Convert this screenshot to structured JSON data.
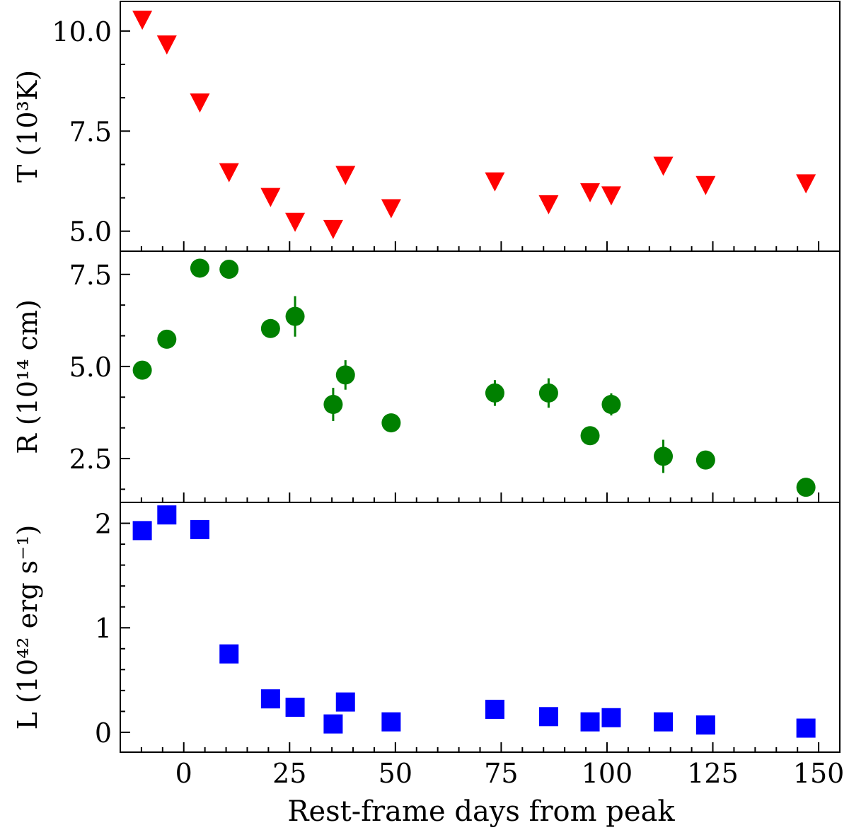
{
  "chart_data": {
    "type": "scatter",
    "xlabel": "Rest-frame days from peak",
    "xlim": [
      -15,
      155
    ],
    "xticks": [
      0,
      25,
      50,
      75,
      100,
      125,
      150
    ],
    "x": [
      -9.8,
      -4,
      3.8,
      10.7,
      20.5,
      26.3,
      35.3,
      38.2,
      49,
      73.5,
      86.2,
      96,
      101,
      113.3,
      123.3,
      147
    ],
    "panels": [
      {
        "name": "T",
        "ylabel": "T (10³K)",
        "ylim": [
          4.5,
          10.74
        ],
        "yticks": [
          "5.0",
          "7.5",
          "10.0"
        ],
        "ytick_values": [
          5,
          7.5,
          10
        ],
        "marker": "triangle-down",
        "color": "#ff0000",
        "values": [
          10.35,
          9.73,
          8.28,
          6.54,
          5.92,
          5.3,
          5.12,
          6.47,
          5.64,
          6.31,
          5.74,
          6.04,
          5.96,
          6.7,
          6.22,
          6.26
        ],
        "errors": [
          0,
          0,
          0,
          0,
          0,
          0,
          0,
          0,
          0,
          0,
          0,
          0,
          0,
          0,
          0,
          0
        ]
      },
      {
        "name": "R",
        "ylabel": "R (10¹⁴ cm)",
        "ylim": [
          1.31,
          8.13
        ],
        "yticks": [
          "2.5",
          "5.0",
          "7.5"
        ],
        "ytick_values": [
          2.5,
          5,
          7.5
        ],
        "marker": "circle",
        "color": "#008000",
        "values": [
          4.9,
          5.74,
          7.67,
          7.64,
          6.03,
          6.36,
          3.97,
          4.77,
          3.47,
          4.28,
          4.28,
          3.12,
          3.97,
          2.56,
          2.46,
          1.72
        ],
        "errors": [
          0,
          0,
          0,
          0,
          0,
          0.55,
          0.45,
          0.4,
          0,
          0.35,
          0.4,
          0,
          0.3,
          0.45,
          0,
          0
        ]
      },
      {
        "name": "L",
        "ylabel": "L (10⁴² erg s⁻¹)",
        "ylim": [
          -0.19,
          2.2
        ],
        "yticks": [
          "0",
          "1",
          "2"
        ],
        "ytick_values": [
          0,
          1,
          2
        ],
        "marker": "square",
        "color": "#0000ff",
        "values": [
          1.93,
          2.08,
          1.94,
          0.75,
          0.32,
          0.24,
          0.08,
          0.29,
          0.1,
          0.22,
          0.15,
          0.1,
          0.14,
          0.1,
          0.07,
          0.04
        ],
        "errors": [
          0,
          0,
          0,
          0,
          0,
          0,
          0,
          0,
          0,
          0,
          0,
          0,
          0,
          0,
          0,
          0
        ]
      }
    ]
  }
}
